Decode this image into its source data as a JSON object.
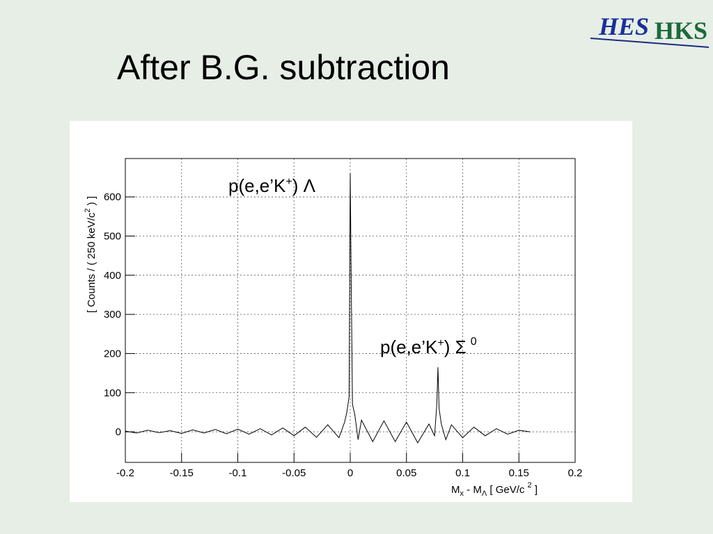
{
  "logo": [
    "HE",
    "S",
    "HKS"
  ],
  "title": "After B.G. subtraction",
  "chart_data": {
    "type": "line",
    "x_label": [
      "M",
      "x",
      " - M",
      "Λ",
      " [ GeV/c ",
      "2",
      " ]"
    ],
    "y_label": [
      "[ Counts / ( 250 keV/c",
      "2",
      " ) ]"
    ],
    "annotations": [
      [
        "p(e,e’K",
        "+",
        ") Λ"
      ],
      [
        "p(e,e’K",
        "+",
        ") Σ",
        "0"
      ]
    ],
    "x": [
      -0.2,
      -0.19,
      -0.18,
      -0.17,
      -0.16,
      -0.15,
      -0.14,
      -0.13,
      -0.12,
      -0.11,
      -0.1,
      -0.09,
      -0.08,
      -0.07,
      -0.06,
      -0.05,
      -0.04,
      -0.03,
      -0.02,
      -0.01,
      -0.005,
      -0.003,
      -0.001,
      0,
      0.001,
      0.002,
      0.004,
      0.007,
      0.01,
      0.02,
      0.03,
      0.04,
      0.05,
      0.06,
      0.07,
      0.075,
      0.077,
      0.078,
      0.079,
      0.081,
      0.085,
      0.09,
      0.1,
      0.11,
      0.12,
      0.13,
      0.14,
      0.15,
      0.16
    ],
    "series": [
      {
        "color": "#000000",
        "values": [
          2,
          -3,
          4,
          -2,
          3,
          -4,
          5,
          -3,
          6,
          -5,
          7,
          -6,
          8,
          -8,
          10,
          -10,
          12,
          -14,
          18,
          -15,
          25,
          50,
          90,
          660,
          350,
          70,
          45,
          -20,
          30,
          -25,
          28,
          -25,
          25,
          -28,
          20,
          -10,
          70,
          165,
          60,
          20,
          -20,
          18,
          -15,
          12,
          -10,
          8,
          -6,
          4,
          0
        ]
      }
    ],
    "xlim": [
      -0.2,
      0.2
    ],
    "xticks": [
      -0.2,
      -0.15,
      -0.1,
      -0.05,
      0,
      0.05,
      0.1,
      0.15,
      0.2
    ],
    "ylim": [
      -78,
      698
    ],
    "yticks": [
      0,
      100,
      200,
      300,
      400,
      500,
      600
    ],
    "grid": true
  }
}
